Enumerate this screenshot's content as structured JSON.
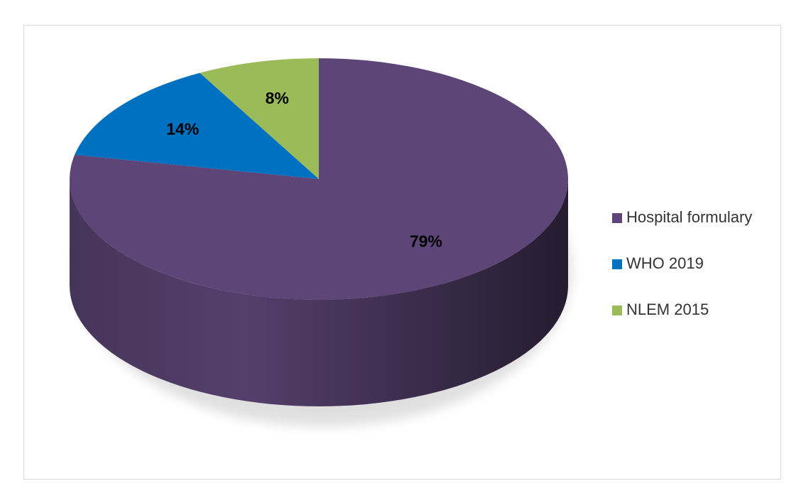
{
  "chart_data": {
    "type": "pie",
    "categories": [
      "Hospital formulary",
      "WHO 2019",
      "NLEM 2015"
    ],
    "values": [
      79,
      14,
      8
    ],
    "value_labels": [
      "79%",
      "14%",
      "8%"
    ],
    "colors": [
      "#5d4677",
      "#0070c0",
      "#9bbb59"
    ],
    "legend": "right"
  }
}
